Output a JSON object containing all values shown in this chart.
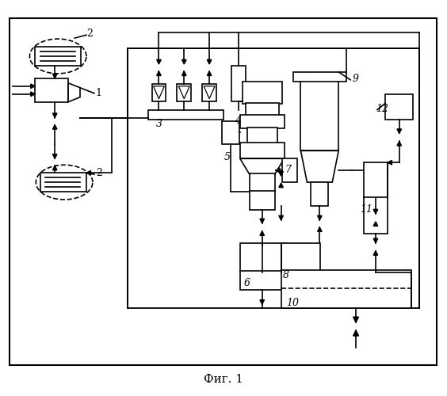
{
  "title": "Фиг. 1",
  "bg": "#ffffff",
  "lc": "#000000",
  "lw": 1.2,
  "fw": 5.64,
  "fh": 5.0,
  "dpi": 100
}
